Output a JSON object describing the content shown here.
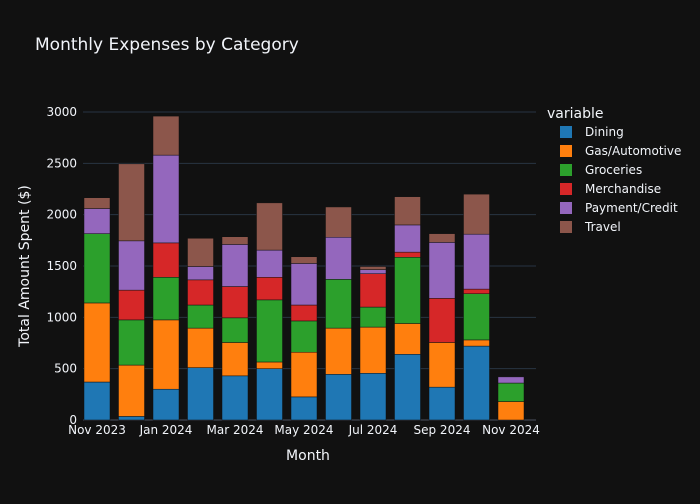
{
  "chart_data": {
    "type": "bar",
    "barmode": "stack",
    "title": "Monthly Expenses by Category",
    "xlabel": "Month",
    "ylabel": "Total Amount Spent ($)",
    "legend_title": "variable",
    "legend_position": "right",
    "grid": true,
    "ylim": [
      0,
      3200
    ],
    "yticks": [
      0,
      500,
      1000,
      1500,
      2000,
      2500,
      3000
    ],
    "xticks": [
      {
        "at": "2023-11",
        "label": "Nov 2023"
      },
      {
        "at": "2024-01",
        "label": "Jan 2024"
      },
      {
        "at": "2024-03",
        "label": "Mar 2024"
      },
      {
        "at": "2024-05",
        "label": "May 2024"
      },
      {
        "at": "2024-07",
        "label": "Jul 2024"
      },
      {
        "at": "2024-09",
        "label": "Sep 2024"
      },
      {
        "at": "2024-11",
        "label": "Nov 2024"
      }
    ],
    "categories": [
      "2023-11",
      "2023-12",
      "2024-01",
      "2024-02",
      "2024-03",
      "2024-04",
      "2024-05",
      "2024-06",
      "2024-07",
      "2024-08",
      "2024-09",
      "2024-10",
      "2024-11"
    ],
    "series": [
      {
        "name": "Dining",
        "color": "#1f77b4",
        "values": [
          370,
          35,
          300,
          510,
          430,
          500,
          225,
          445,
          455,
          640,
          320,
          720,
          0
        ]
      },
      {
        "name": "Gas/Automotive",
        "color": "#ff7f0e",
        "values": [
          770,
          500,
          675,
          385,
          325,
          65,
          435,
          450,
          450,
          300,
          435,
          60,
          180
        ]
      },
      {
        "name": "Groceries",
        "color": "#2ca02c",
        "values": [
          675,
          440,
          415,
          225,
          240,
          605,
          305,
          475,
          195,
          645,
          0,
          450,
          180
        ]
      },
      {
        "name": "Merchandise",
        "color": "#d62728",
        "values": [
          0,
          290,
          335,
          245,
          305,
          220,
          155,
          0,
          325,
          50,
          430,
          45,
          0
        ]
      },
      {
        "name": "Payment/Credit",
        "color": "#9467bd",
        "values": [
          245,
          480,
          855,
          130,
          410,
          265,
          405,
          410,
          40,
          265,
          545,
          535,
          60
        ]
      },
      {
        "name": "Travel",
        "color": "#8c564b",
        "values": [
          105,
          750,
          380,
          275,
          75,
          460,
          65,
          295,
          30,
          275,
          85,
          390,
          0
        ]
      }
    ]
  }
}
